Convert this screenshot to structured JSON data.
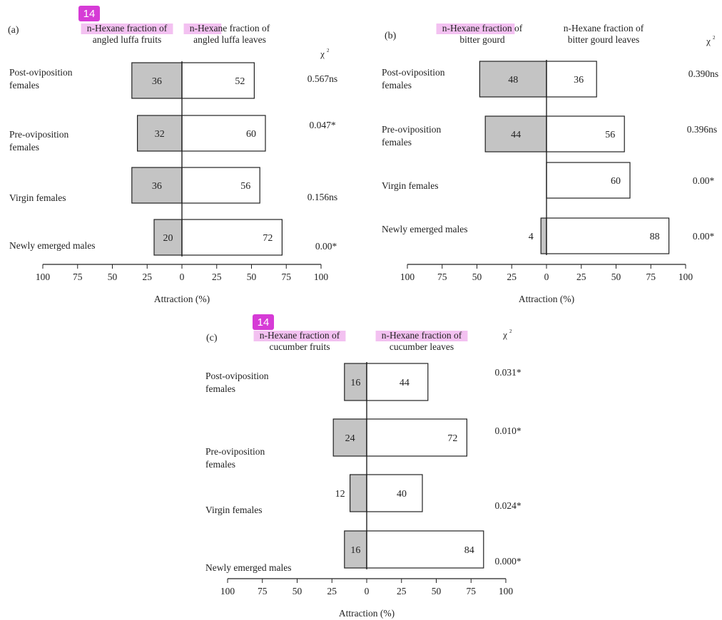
{
  "overlay_badges": [
    "14",
    "14"
  ],
  "colors": {
    "left_bar_fill": "#c4c4c4",
    "right_bar_fill": "#ffffff",
    "bar_stroke": "#222222",
    "highlight": "#f3c1f1",
    "badge_fill": "#d63bd6",
    "badge_text": "#ffffff"
  },
  "chart_data": [
    {
      "type": "bar",
      "orientation": "horizontal-diverging",
      "panel": "(a)",
      "left_header": [
        "n-Hexane fraction of",
        "angled luffa fruits"
      ],
      "right_header": [
        "n-Hexane fraction of",
        "angled luffa leaves"
      ],
      "left_highlight": "n-Hexane fraction of",
      "right_highlight": "n-Hexane",
      "chi_label": "χ",
      "chi_sup": "2",
      "xlabel": "Attraction (%)",
      "xlim": [
        -100,
        100
      ],
      "ticks": [
        -100,
        -75,
        -50,
        -25,
        0,
        25,
        50,
        75,
        100
      ],
      "tick_labels": [
        "100",
        "75",
        "50",
        "25",
        "0",
        "25",
        "50",
        "75",
        "100"
      ],
      "categories": [
        [
          "Post-oviposition",
          "females"
        ],
        [
          "Pre-oviposition",
          "females"
        ],
        [
          "Virgin females"
        ],
        [
          "Newly emerged males"
        ]
      ],
      "left_values": [
        36,
        32,
        36,
        20
      ],
      "right_values": [
        52,
        60,
        56,
        72
      ],
      "chi_values": [
        "0.567ns",
        "0.047*",
        "0.156ns",
        "0.00*"
      ]
    },
    {
      "type": "bar",
      "orientation": "horizontal-diverging",
      "panel": "(b)",
      "left_header": [
        "n-Hexane fraction of",
        "bitter gourd"
      ],
      "right_header": [
        "n-Hexane fraction of",
        "bitter gourd leaves"
      ],
      "left_highlight": "n-Hexane fraction",
      "right_highlight": "",
      "chi_label": "χ",
      "chi_sup": "2",
      "xlabel": "Attraction (%)",
      "xlim": [
        -100,
        100
      ],
      "ticks": [
        -100,
        -75,
        -50,
        -25,
        0,
        25,
        50,
        75,
        100
      ],
      "tick_labels": [
        "100",
        "75",
        "50",
        "25",
        "0",
        "25",
        "50",
        "75",
        "100"
      ],
      "categories": [
        [
          "Post-oviposition",
          "females"
        ],
        [
          "Pre-oviposition",
          "females"
        ],
        [
          "Virgin females"
        ],
        [
          "Newly emerged males"
        ]
      ],
      "left_values": [
        48,
        44,
        0,
        4
      ],
      "right_values": [
        36,
        56,
        60,
        88
      ],
      "chi_values": [
        "0.390ns",
        "0.396ns",
        "0.00*",
        "0.00*"
      ]
    },
    {
      "type": "bar",
      "orientation": "horizontal-diverging",
      "panel": "(c)",
      "left_header": [
        "n-Hexane fraction of",
        "cucumber fruits"
      ],
      "right_header": [
        "n-Hexane fraction of",
        "cucumber leaves"
      ],
      "left_highlight": "n-Hexane fraction of",
      "right_highlight": "n-Hexane fraction of",
      "chi_label": "χ",
      "chi_sup": "2",
      "xlabel": "Attraction (%)",
      "xlim": [
        -100,
        100
      ],
      "ticks": [
        -100,
        -75,
        -50,
        -25,
        0,
        25,
        50,
        75,
        100
      ],
      "tick_labels": [
        "100",
        "75",
        "50",
        "25",
        "0",
        "25",
        "50",
        "75",
        "100"
      ],
      "categories": [
        [
          "Post-oviposition",
          "females"
        ],
        [
          "Pre-oviposition",
          "females"
        ],
        [
          "Virgin females"
        ],
        [
          "Newly emerged males"
        ]
      ],
      "left_values": [
        16,
        24,
        12,
        16
      ],
      "right_values": [
        44,
        72,
        40,
        84
      ],
      "chi_values": [
        "0.031*",
        "0.010*",
        "0.024*",
        "0.000*"
      ]
    }
  ]
}
